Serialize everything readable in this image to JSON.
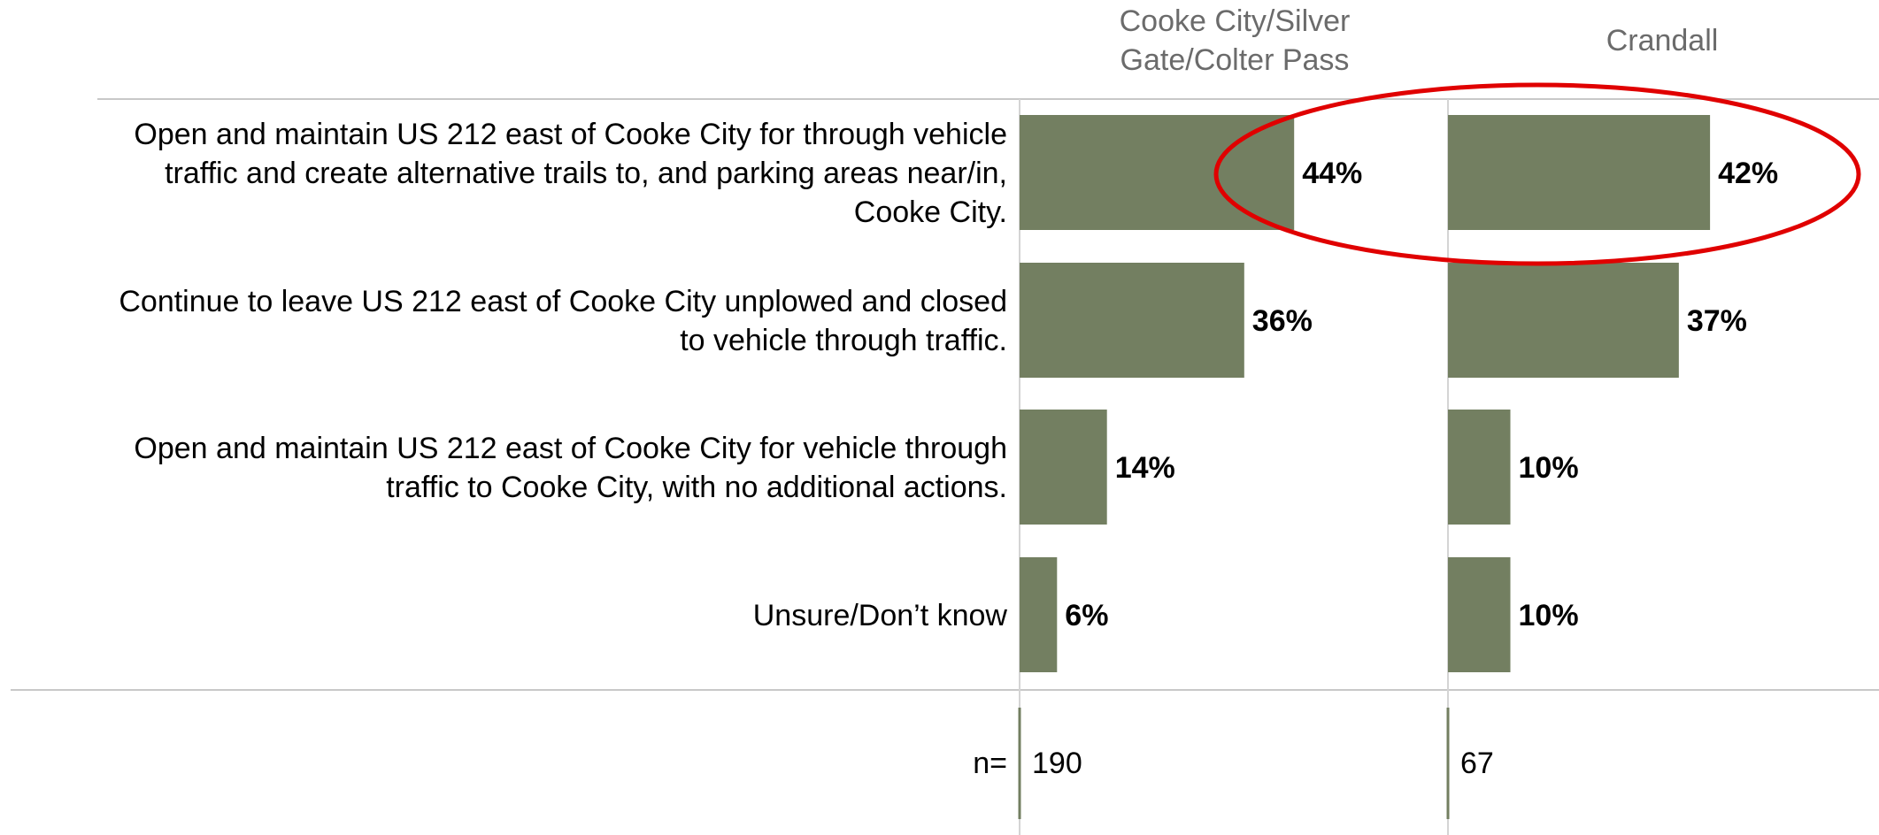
{
  "chart_data": {
    "type": "bar",
    "orientation": "horizontal",
    "categories": [
      "Open and maintain US 212 east of Cooke City for through vehicle traffic and create alternative trails to, and parking areas near/in, Cooke City.",
      "Continue to leave US 212 east of Cooke City unplowed and closed to vehicle through traffic.",
      "Open and maintain US 212 east of Cooke City for vehicle through traffic to Cooke City, with no additional actions.",
      "Unsure/Don’t know"
    ],
    "category_lines": [
      [
        "Open and maintain US 212 east of Cooke City for through vehicle",
        "traffic and create alternative trails to, and parking areas near/in,",
        "Cooke City."
      ],
      [
        "Continue to leave US 212 east of Cooke City unplowed and closed",
        "to vehicle through traffic."
      ],
      [
        "Open and maintain US 212 east of Cooke City for vehicle through",
        "traffic to Cooke City, with no additional actions."
      ],
      [
        "Unsure/Don’t know"
      ]
    ],
    "series": [
      {
        "name": "Cooke City/Silver Gate/Colter Pass",
        "name_lines": [
          "Cooke City/Silver",
          "Gate/Colter Pass"
        ],
        "values": [
          44,
          36,
          14,
          6
        ],
        "labels": [
          "44%",
          "36%",
          "14%",
          "6%"
        ],
        "n": "190"
      },
      {
        "name": "Crandall",
        "name_lines": [
          "Crandall"
        ],
        "values": [
          42,
          37,
          10,
          10
        ],
        "labels": [
          "42%",
          "37%",
          "10%",
          "10%"
        ],
        "n": "67"
      }
    ],
    "n_label": "n=",
    "unit": "%",
    "xlim": [
      0,
      100
    ],
    "highlight": {
      "shape": "ellipse",
      "category_index": 0,
      "color": "#e00000"
    },
    "bar_color": "#737f61",
    "grid": false
  }
}
